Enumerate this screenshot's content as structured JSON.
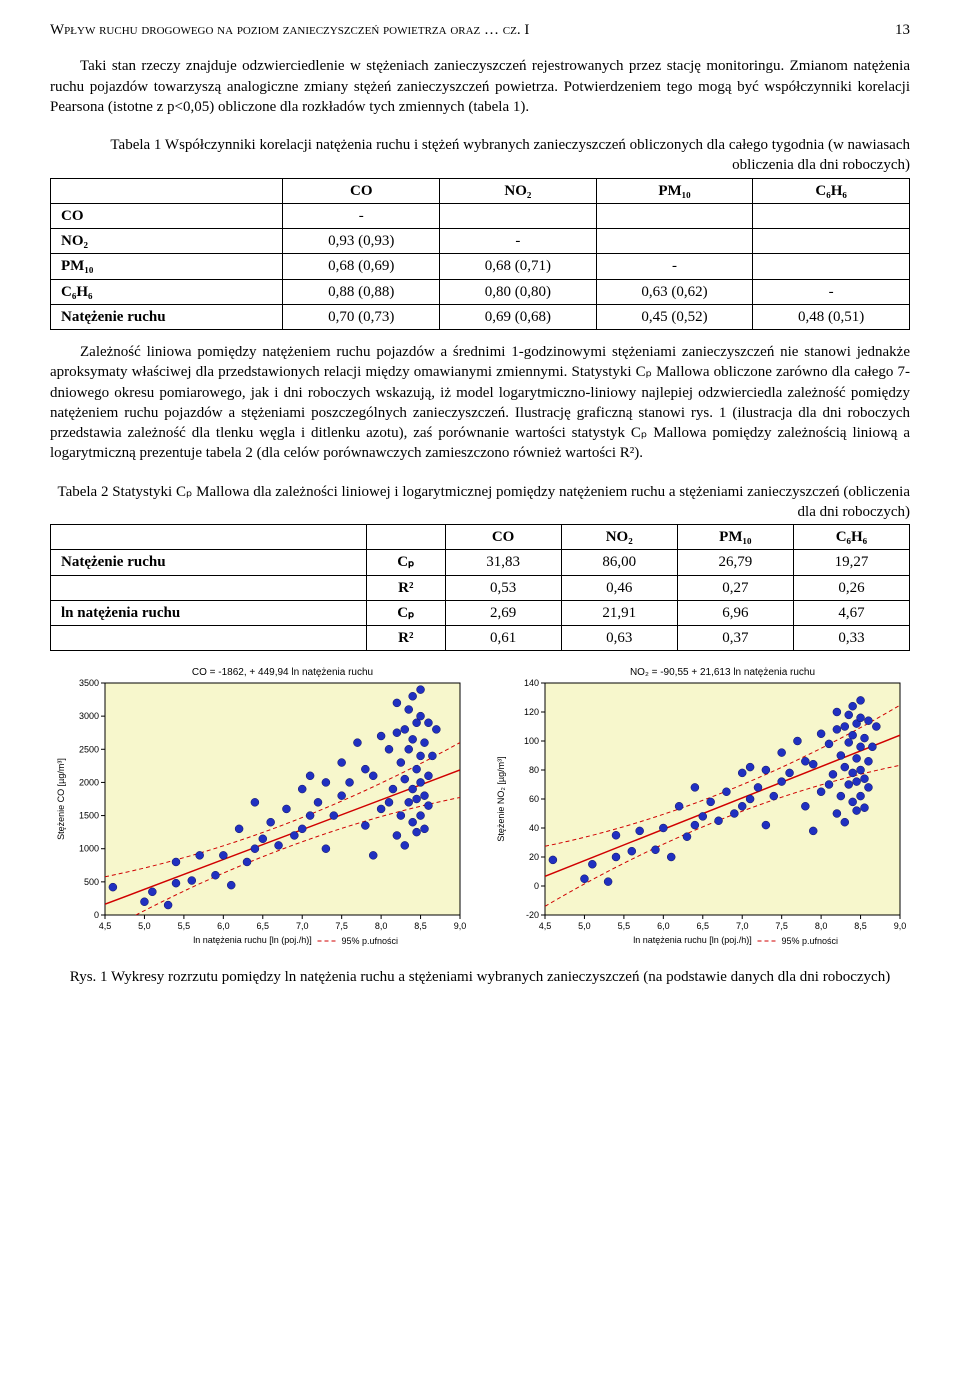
{
  "header": {
    "running_title": "Wpływ ruchu drogowego na poziom zanieczyszczeń powietrza oraz … cz. I",
    "page_num": "13"
  },
  "para1": "Taki stan rzeczy znajduje odzwierciedlenie w stężeniach zanieczyszczeń rejestrowanych przez stację monitoringu. Zmianom natężenia ruchu pojazdów towarzyszą analogiczne zmiany stężeń zanieczyszczeń powietrza. Potwierdzeniem tego mogą być współczynniki korelacji Pearsona (istotne z p<0,05) obliczone dla rozkładów tych zmiennych (tabela 1).",
  "table1": {
    "caption": "Tabela 1 Współczynniki korelacji natężenia ruchu i stężeń wybranych zanieczyszczeń obliczonych dla całego tygodnia (w nawiasach obliczenia dla dni roboczych)",
    "col_labels": [
      "CO",
      "NO₂",
      "PM₁₀",
      "C₆H₆"
    ],
    "rows": [
      {
        "label": "CO",
        "cells": [
          "-",
          "",
          "",
          ""
        ]
      },
      {
        "label": "NO₂",
        "cells": [
          "0,93 (0,93)",
          "-",
          "",
          ""
        ]
      },
      {
        "label": "PM₁₀",
        "cells": [
          "0,68 (0,69)",
          "0,68 (0,71)",
          "-",
          ""
        ]
      },
      {
        "label": "C₆H₆",
        "cells": [
          "0,88 (0,88)",
          "0,80 (0,80)",
          "0,63 (0,62)",
          "-"
        ]
      },
      {
        "label": "Natężenie ruchu",
        "cells": [
          "0,70 (0,73)",
          "0,69 (0,68)",
          "0,45 (0,52)",
          "0,48 (0,51)"
        ]
      }
    ]
  },
  "para2": "Zależność liniowa pomiędzy natężeniem ruchu pojazdów a średnimi 1-godzinowymi stężeniami zanieczyszczeń nie stanowi jednakże aproksymaty właściwej dla przedstawionych relacji między omawianymi zmiennymi. Statystyki Cₚ Mallowa obliczone zarówno dla całego 7-dniowego okresu pomiarowego, jak i dni roboczych wskazują, iż model logarytmiczno-liniowy najlepiej odzwierciedla zależność pomiędzy natężeniem ruchu pojazdów a stężeniami poszczególnych zanieczyszczeń. Ilustrację graficzną stanowi rys. 1 (ilustracja dla dni roboczych przedstawia zależność dla tlenku węgla i ditlenku azotu), zaś porównanie wartości statystyk Cₚ Mallowa pomiędzy zależnością liniową a logarytmiczną prezentuje tabela 2 (dla celów porównawczych zamieszczono również wartości R²).",
  "table2": {
    "caption": "Tabela 2 Statystyki Cₚ Mallowa dla zależności liniowej i logarytmicznej pomiędzy natężeniem ruchu a stężeniami zanieczyszczeń (obliczenia dla dni roboczych)",
    "col_labels": [
      "CO",
      "NO₂",
      "PM₁₀",
      "C₆H₆"
    ],
    "rows": [
      {
        "group": "Natężenie ruchu",
        "stat": "Cₚ",
        "cells": [
          "31,83",
          "86,00",
          "26,79",
          "19,27"
        ]
      },
      {
        "group": "",
        "stat": "R²",
        "cells": [
          "0,53",
          "0,46",
          "0,27",
          "0,26"
        ]
      },
      {
        "group": "ln natężenia ruchu",
        "stat": "Cₚ",
        "cells": [
          "2,69",
          "21,91",
          "6,96",
          "4,67"
        ]
      },
      {
        "group": "",
        "stat": "R²",
        "cells": [
          "0,61",
          "0,63",
          "0,37",
          "0,33"
        ]
      }
    ]
  },
  "chart_left": {
    "type": "scatter",
    "title": "CO = -1862, + 449,94 ln natężenia ruchu",
    "title_fontsize": 10,
    "xlabel": "ln natężenia ruchu [ln (poj./h)]",
    "ylabel": "Stężenie CO [µg/m³]",
    "xlim": [
      4.5,
      9.0
    ],
    "ylim": [
      0,
      3500
    ],
    "xtick_step": 0.5,
    "ytick_step": 500,
    "background_color": "#f7f7cc",
    "grid_color": "none",
    "marker_color": "#2030c0",
    "marker_border": "#101060",
    "marker_size": 4,
    "fit_color": "#d00000",
    "ci_color": "#d00000",
    "ci_dash": "4,3",
    "legend_label": "95% p.ufności",
    "fit": {
      "a": -1862,
      "b": 449.94
    },
    "ci_spread": 180,
    "points": [
      [
        4.6,
        420
      ],
      [
        5.0,
        200
      ],
      [
        5.1,
        350
      ],
      [
        5.3,
        150
      ],
      [
        5.4,
        480
      ],
      [
        5.4,
        800
      ],
      [
        5.6,
        520
      ],
      [
        5.7,
        900
      ],
      [
        5.9,
        600
      ],
      [
        6.0,
        900
      ],
      [
        6.1,
        450
      ],
      [
        6.2,
        1300
      ],
      [
        6.3,
        800
      ],
      [
        6.4,
        1000
      ],
      [
        6.4,
        1700
      ],
      [
        6.5,
        1150
      ],
      [
        6.6,
        1400
      ],
      [
        6.7,
        1050
      ],
      [
        6.8,
        1600
      ],
      [
        6.9,
        1200
      ],
      [
        7.0,
        1900
      ],
      [
        7.0,
        1300
      ],
      [
        7.1,
        1500
      ],
      [
        7.1,
        2100
      ],
      [
        7.2,
        1700
      ],
      [
        7.3,
        1000
      ],
      [
        7.3,
        2000
      ],
      [
        7.4,
        1500
      ],
      [
        7.5,
        1800
      ],
      [
        7.5,
        2300
      ],
      [
        7.6,
        2000
      ],
      [
        7.7,
        2600
      ],
      [
        7.8,
        1350
      ],
      [
        7.8,
        2200
      ],
      [
        7.9,
        900
      ],
      [
        7.9,
        2100
      ],
      [
        8.0,
        1600
      ],
      [
        8.0,
        2700
      ],
      [
        8.1,
        1700
      ],
      [
        8.1,
        2500
      ],
      [
        8.15,
        1900
      ],
      [
        8.2,
        1200
      ],
      [
        8.2,
        2750
      ],
      [
        8.2,
        3200
      ],
      [
        8.25,
        1500
      ],
      [
        8.25,
        2300
      ],
      [
        8.3,
        1050
      ],
      [
        8.3,
        2050
      ],
      [
        8.3,
        2800
      ],
      [
        8.35,
        1700
      ],
      [
        8.35,
        2500
      ],
      [
        8.35,
        3100
      ],
      [
        8.4,
        1400
      ],
      [
        8.4,
        1900
      ],
      [
        8.4,
        2650
      ],
      [
        8.4,
        3300
      ],
      [
        8.45,
        1250
      ],
      [
        8.45,
        2200
      ],
      [
        8.45,
        2900
      ],
      [
        8.45,
        1750
      ],
      [
        8.5,
        3000
      ],
      [
        8.5,
        2000
      ],
      [
        8.5,
        1500
      ],
      [
        8.5,
        2400
      ],
      [
        8.55,
        1800
      ],
      [
        8.55,
        2600
      ],
      [
        8.55,
        1300
      ],
      [
        8.6,
        2100
      ],
      [
        8.6,
        2900
      ],
      [
        8.6,
        1650
      ],
      [
        8.65,
        2400
      ],
      [
        8.7,
        2800
      ],
      [
        8.5,
        3400
      ]
    ]
  },
  "chart_right": {
    "type": "scatter",
    "title": "NO₂ = -90,55 + 21,613 ln natężenia ruchu",
    "title_fontsize": 10,
    "xlabel": "ln natężenia ruchu [ln (poj./h)]",
    "ylabel": "Stężenie NO₂ [µg/m³]",
    "xlim": [
      4.5,
      9.0
    ],
    "ylim": [
      -20,
      140
    ],
    "xtick_step": 0.5,
    "ytick_step": 20,
    "background_color": "#f7f7cc",
    "grid_color": "none",
    "marker_color": "#2030c0",
    "marker_border": "#101060",
    "marker_size": 4,
    "fit_color": "#d00000",
    "ci_color": "#d00000",
    "ci_dash": "4,3",
    "legend_label": "95% p.ufności",
    "fit": {
      "a": -90.55,
      "b": 21.613
    },
    "ci_spread": 9,
    "points": [
      [
        4.6,
        18
      ],
      [
        5.0,
        5
      ],
      [
        5.1,
        15
      ],
      [
        5.3,
        3
      ],
      [
        5.4,
        20
      ],
      [
        5.4,
        35
      ],
      [
        5.6,
        24
      ],
      [
        5.7,
        38
      ],
      [
        5.9,
        25
      ],
      [
        6.0,
        40
      ],
      [
        6.1,
        20
      ],
      [
        6.2,
        55
      ],
      [
        6.3,
        34
      ],
      [
        6.4,
        42
      ],
      [
        6.4,
        68
      ],
      [
        6.5,
        48
      ],
      [
        6.6,
        58
      ],
      [
        6.7,
        45
      ],
      [
        6.8,
        65
      ],
      [
        6.9,
        50
      ],
      [
        7.0,
        78
      ],
      [
        7.0,
        55
      ],
      [
        7.1,
        60
      ],
      [
        7.1,
        82
      ],
      [
        7.2,
        68
      ],
      [
        7.3,
        42
      ],
      [
        7.3,
        80
      ],
      [
        7.4,
        62
      ],
      [
        7.5,
        72
      ],
      [
        7.5,
        92
      ],
      [
        7.6,
        78
      ],
      [
        7.7,
        100
      ],
      [
        7.8,
        55
      ],
      [
        7.8,
        86
      ],
      [
        7.9,
        38
      ],
      [
        7.9,
        84
      ],
      [
        8.0,
        65
      ],
      [
        8.0,
        105
      ],
      [
        8.1,
        70
      ],
      [
        8.1,
        98
      ],
      [
        8.15,
        77
      ],
      [
        8.2,
        50
      ],
      [
        8.2,
        108
      ],
      [
        8.2,
        120
      ],
      [
        8.25,
        62
      ],
      [
        8.25,
        90
      ],
      [
        8.3,
        44
      ],
      [
        8.3,
        82
      ],
      [
        8.3,
        110
      ],
      [
        8.35,
        70
      ],
      [
        8.35,
        99
      ],
      [
        8.35,
        118
      ],
      [
        8.4,
        58
      ],
      [
        8.4,
        78
      ],
      [
        8.4,
        104
      ],
      [
        8.4,
        124
      ],
      [
        8.45,
        52
      ],
      [
        8.45,
        88
      ],
      [
        8.45,
        112
      ],
      [
        8.45,
        72
      ],
      [
        8.5,
        116
      ],
      [
        8.5,
        80
      ],
      [
        8.5,
        62
      ],
      [
        8.5,
        96
      ],
      [
        8.55,
        74
      ],
      [
        8.55,
        102
      ],
      [
        8.55,
        54
      ],
      [
        8.6,
        86
      ],
      [
        8.6,
        114
      ],
      [
        8.6,
        68
      ],
      [
        8.65,
        96
      ],
      [
        8.7,
        110
      ],
      [
        8.5,
        128
      ]
    ]
  },
  "fig_caption": "Rys. 1 Wykresy rozrzutu pomiędzy ln natężenia ruchu a stężeniami wybranych zanieczyszczeń (na podstawie danych dla dni roboczych)"
}
